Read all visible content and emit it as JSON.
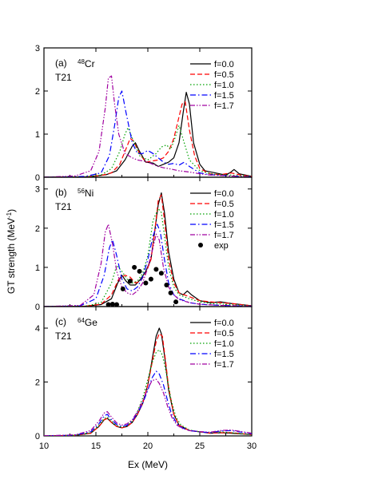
{
  "figure": {
    "xlabel": "Ex (MeV)",
    "ylabel": "GT strength (MeV",
    "ylabel_sup": "-1",
    "ylabel_close": ")",
    "xticks": [
      10,
      15,
      20,
      25,
      30
    ]
  },
  "legend_labels": [
    "f=0.0",
    "f=0.5",
    "f=1.0",
    "f=1.5",
    "f=1.7"
  ],
  "exp_label": "exp",
  "series_styles": [
    {
      "color": "#000000",
      "dash": ""
    },
    {
      "color": "#ff0000",
      "dash": "6,3"
    },
    {
      "color": "#00a000",
      "dash": "1.5,2.5"
    },
    {
      "color": "#0000ff",
      "dash": "7,3,1.5,3"
    },
    {
      "color": "#a000a0",
      "dash": "6,2,1.5,2,1.5,2"
    }
  ],
  "chart_data": [
    {
      "type": "line",
      "panel": "(a)",
      "nucleus_mass": "48",
      "nucleus_symbol": "Cr",
      "interaction": "T21",
      "xlim": [
        10,
        30
      ],
      "ylim": [
        0,
        3
      ],
      "yticks": [
        0,
        1,
        2,
        3
      ],
      "series": [
        {
          "name": "f=0.0",
          "x": [
            10,
            14,
            15,
            16,
            17,
            17.8,
            18.5,
            18.8,
            19.2,
            19.8,
            20.5,
            21,
            21.5,
            22,
            22.5,
            23,
            23.4,
            23.7,
            24,
            24.4,
            25,
            25.5,
            26.5,
            27.5,
            28,
            28.3,
            28.8,
            30
          ],
          "y": [
            0,
            0.01,
            0.03,
            0.06,
            0.15,
            0.4,
            0.72,
            0.8,
            0.6,
            0.35,
            0.33,
            0.25,
            0.3,
            0.35,
            0.45,
            0.8,
            1.5,
            1.97,
            1.7,
            0.8,
            0.3,
            0.15,
            0.1,
            0.05,
            0.12,
            0.18,
            0.08,
            0.02
          ]
        },
        {
          "name": "f=0.5",
          "x": [
            10,
            14,
            15.5,
            16.5,
            17.3,
            17.8,
            18.3,
            18.6,
            19.2,
            19.8,
            20.5,
            21,
            21.5,
            22,
            22.5,
            23,
            23.3,
            23.6,
            24,
            24.5,
            25,
            26,
            27,
            28,
            29,
            30
          ],
          "y": [
            0,
            0.01,
            0.04,
            0.1,
            0.3,
            0.6,
            0.9,
            0.85,
            0.55,
            0.35,
            0.38,
            0.4,
            0.45,
            0.6,
            0.9,
            1.4,
            1.7,
            1.75,
            1.1,
            0.5,
            0.2,
            0.08,
            0.06,
            0.1,
            0.05,
            0.02
          ]
        },
        {
          "name": "f=1.0",
          "x": [
            10,
            14,
            15.5,
            16.5,
            17.3,
            17.8,
            18.1,
            18.6,
            19.2,
            20,
            20.8,
            21.3,
            21.8,
            22.2,
            22.6,
            23,
            23.5,
            24,
            25,
            26,
            27,
            28,
            30
          ],
          "y": [
            0,
            0.01,
            0.05,
            0.2,
            0.6,
            1.0,
            1.15,
            0.85,
            0.5,
            0.4,
            0.55,
            0.7,
            0.75,
            0.65,
            0.9,
            1.2,
            0.8,
            0.4,
            0.15,
            0.08,
            0.06,
            0.05,
            0.02
          ]
        },
        {
          "name": "f=1.5",
          "x": [
            10,
            14,
            15.5,
            16.3,
            16.8,
            17.2,
            17.5,
            17.9,
            18.5,
            19,
            19.5,
            20,
            20.5,
            21,
            21.5,
            22,
            22.5,
            23,
            23.5,
            24,
            25,
            26,
            28,
            30
          ],
          "y": [
            0,
            0.02,
            0.1,
            0.5,
            1.2,
            1.85,
            2.0,
            1.5,
            0.8,
            0.55,
            0.55,
            0.62,
            0.55,
            0.45,
            0.35,
            0.3,
            0.32,
            0.28,
            0.35,
            0.25,
            0.1,
            0.06,
            0.03,
            0.01
          ]
        },
        {
          "name": "f=1.7",
          "x": [
            10,
            13,
            14.5,
            15.3,
            15.9,
            16.2,
            16.5,
            16.8,
            17.2,
            17.8,
            18.5,
            19,
            19.5,
            20,
            20.5,
            21,
            21.5,
            22,
            23,
            24,
            25,
            26,
            28,
            30
          ],
          "y": [
            0,
            0.03,
            0.15,
            0.6,
            1.6,
            2.3,
            2.35,
            1.7,
            1.0,
            0.55,
            0.45,
            0.4,
            0.38,
            0.35,
            0.3,
            0.25,
            0.22,
            0.2,
            0.15,
            0.12,
            0.08,
            0.05,
            0.03,
            0.01
          ]
        }
      ]
    },
    {
      "type": "line",
      "panel": "(b)",
      "nucleus_mass": "56",
      "nucleus_symbol": "Ni",
      "interaction": "T21",
      "xlim": [
        10,
        30
      ],
      "ylim": [
        0,
        3.3
      ],
      "yticks": [
        0,
        1,
        2,
        3
      ],
      "series": [
        {
          "name": "f=0.0",
          "x": [
            10,
            14,
            15.5,
            16.5,
            17.1,
            17.5,
            17.9,
            18.3,
            18.8,
            19.3,
            19.8,
            20.3,
            20.7,
            21,
            21.3,
            21.6,
            22,
            22.5,
            23,
            23.4,
            23.8,
            24.2,
            25,
            26,
            27,
            28,
            30
          ],
          "y": [
            0,
            0.01,
            0.05,
            0.2,
            0.6,
            0.8,
            0.65,
            0.55,
            0.55,
            0.7,
            0.9,
            1.2,
            2.0,
            2.6,
            2.9,
            2.4,
            1.4,
            0.7,
            0.35,
            0.3,
            0.4,
            0.3,
            0.15,
            0.1,
            0.12,
            0.08,
            0.02
          ]
        },
        {
          "name": "f=0.5",
          "x": [
            10,
            14,
            15.5,
            16.5,
            17.2,
            17.8,
            18.3,
            18.8,
            19.3,
            19.8,
            20.3,
            20.7,
            21,
            21.3,
            21.6,
            22,
            22.5,
            23,
            23.5,
            24,
            25,
            26,
            27,
            28,
            30
          ],
          "y": [
            0,
            0.01,
            0.06,
            0.3,
            0.7,
            0.8,
            0.75,
            0.6,
            0.65,
            0.85,
            1.2,
            2.0,
            2.7,
            2.85,
            2.2,
            1.2,
            0.6,
            0.35,
            0.3,
            0.25,
            0.15,
            0.12,
            0.1,
            0.08,
            0.02
          ]
        },
        {
          "name": "f=1.0",
          "x": [
            10,
            14,
            15.5,
            16.5,
            17,
            17.5,
            18,
            18.5,
            19,
            19.5,
            20,
            20.5,
            21,
            21.3,
            21.6,
            22,
            22.5,
            23,
            24,
            25,
            26,
            28,
            30
          ],
          "y": [
            0,
            0.01,
            0.1,
            0.6,
            1.05,
            0.9,
            0.7,
            0.6,
            0.65,
            0.85,
            1.3,
            2.2,
            2.5,
            2.4,
            1.8,
            1.0,
            0.5,
            0.3,
            0.2,
            0.12,
            0.08,
            0.05,
            0.02
          ]
        },
        {
          "name": "f=1.5",
          "x": [
            10,
            13.5,
            15,
            15.8,
            16.3,
            16.6,
            17,
            17.5,
            18,
            18.5,
            19,
            19.5,
            20,
            20.5,
            20.9,
            21.2,
            21.6,
            22,
            22.5,
            23,
            24,
            25,
            27,
            30
          ],
          "y": [
            0,
            0.02,
            0.2,
            0.8,
            1.5,
            1.7,
            1.3,
            0.7,
            0.45,
            0.4,
            0.5,
            0.75,
            1.2,
            1.8,
            2.1,
            1.9,
            1.2,
            0.6,
            0.3,
            0.2,
            0.1,
            0.06,
            0.03,
            0.01
          ]
        },
        {
          "name": "f=1.7",
          "x": [
            10,
            13.5,
            14.8,
            15.5,
            15.9,
            16.2,
            16.6,
            17,
            17.5,
            18,
            18.5,
            19,
            19.5,
            20,
            20.5,
            20.8,
            21.1,
            21.5,
            22,
            22.5,
            23,
            24,
            25,
            27,
            30
          ],
          "y": [
            0,
            0.03,
            0.3,
            1.1,
            1.9,
            2.1,
            1.6,
            0.9,
            0.5,
            0.35,
            0.3,
            0.4,
            0.6,
            1.0,
            1.5,
            1.85,
            1.7,
            1.0,
            0.5,
            0.3,
            0.18,
            0.1,
            0.06,
            0.03,
            0.01
          ]
        },
        {
          "name": "exp",
          "points": [
            [
              16.2,
              0.05
            ],
            [
              16.6,
              0.06
            ],
            [
              17.0,
              0.05
            ],
            [
              17.6,
              0.45
            ],
            [
              18.3,
              0.65
            ],
            [
              18.7,
              1.0
            ],
            [
              19.2,
              0.9
            ],
            [
              19.8,
              0.6
            ],
            [
              20.3,
              0.7
            ],
            [
              20.8,
              0.95
            ],
            [
              21.3,
              0.85
            ],
            [
              21.8,
              0.55
            ],
            [
              22.2,
              0.35
            ],
            [
              22.7,
              0.12
            ]
          ]
        }
      ]
    },
    {
      "type": "line",
      "panel": "(c)",
      "nucleus_mass": "64",
      "nucleus_symbol": "Ge",
      "interaction": "T21",
      "xlim": [
        10,
        30
      ],
      "ylim": [
        0,
        4.8
      ],
      "yticks": [
        0,
        2,
        4
      ],
      "series": [
        {
          "name": "f=0.0",
          "x": [
            10,
            13,
            14.5,
            15.3,
            15.8,
            16.1,
            16.5,
            17,
            17.5,
            18,
            18.5,
            19,
            19.5,
            20,
            20.4,
            20.8,
            21.1,
            21.3,
            21.6,
            22,
            22.5,
            23,
            24,
            25,
            26,
            27,
            28,
            30
          ],
          "y": [
            0,
            0.02,
            0.1,
            0.35,
            0.6,
            0.65,
            0.5,
            0.35,
            0.3,
            0.35,
            0.5,
            0.8,
            1.2,
            1.9,
            2.8,
            3.7,
            4.0,
            3.8,
            3.0,
            1.7,
            0.8,
            0.4,
            0.2,
            0.15,
            0.1,
            0.12,
            0.1,
            0.05
          ]
        },
        {
          "name": "f=0.5",
          "x": [
            10,
            13,
            14.5,
            15.3,
            15.8,
            16.1,
            16.5,
            17,
            17.5,
            18,
            18.5,
            19,
            19.5,
            20,
            20.4,
            20.8,
            21.1,
            21.4,
            21.7,
            22,
            22.5,
            23,
            24,
            25,
            26,
            27,
            28,
            30
          ],
          "y": [
            0,
            0.02,
            0.1,
            0.35,
            0.6,
            0.65,
            0.5,
            0.35,
            0.3,
            0.35,
            0.5,
            0.8,
            1.2,
            1.9,
            2.7,
            3.5,
            3.8,
            3.7,
            2.8,
            1.8,
            0.8,
            0.4,
            0.2,
            0.15,
            0.1,
            0.12,
            0.12,
            0.05
          ]
        },
        {
          "name": "f=1.0",
          "x": [
            10,
            13,
            14.5,
            15.3,
            15.8,
            16.1,
            16.5,
            17,
            17.5,
            18,
            18.5,
            19,
            19.5,
            20,
            20.4,
            20.8,
            21.1,
            21.4,
            21.8,
            22.2,
            22.7,
            23.2,
            24,
            25,
            26,
            27,
            28,
            30
          ],
          "y": [
            0,
            0.02,
            0.12,
            0.4,
            0.65,
            0.7,
            0.55,
            0.38,
            0.32,
            0.38,
            0.55,
            0.9,
            1.4,
            2.1,
            2.7,
            3.1,
            3.2,
            3.0,
            2.3,
            1.4,
            0.7,
            0.4,
            0.22,
            0.15,
            0.12,
            0.15,
            0.12,
            0.05
          ]
        },
        {
          "name": "f=1.5",
          "x": [
            10,
            13,
            14.5,
            15.3,
            15.8,
            16.1,
            16.5,
            17,
            17.5,
            18,
            18.5,
            19,
            19.5,
            20,
            20.4,
            20.8,
            21.1,
            21.5,
            21.9,
            22.3,
            22.8,
            23.3,
            24,
            25,
            26,
            27,
            28,
            30
          ],
          "y": [
            0,
            0.03,
            0.15,
            0.45,
            0.75,
            0.8,
            0.6,
            0.42,
            0.35,
            0.4,
            0.55,
            0.85,
            1.2,
            1.7,
            2.15,
            2.4,
            2.3,
            1.9,
            1.3,
            0.8,
            0.45,
            0.3,
            0.2,
            0.15,
            0.12,
            0.18,
            0.2,
            0.08
          ]
        },
        {
          "name": "f=1.7",
          "x": [
            10,
            13,
            14.5,
            15.3,
            15.8,
            16.1,
            16.5,
            17,
            17.5,
            18,
            18.5,
            19,
            19.5,
            20,
            20.4,
            20.8,
            21.1,
            21.5,
            21.9,
            22.3,
            22.8,
            23.3,
            24,
            25,
            26,
            27,
            28,
            30
          ],
          "y": [
            0,
            0.04,
            0.2,
            0.55,
            0.85,
            0.9,
            0.7,
            0.48,
            0.4,
            0.45,
            0.6,
            0.9,
            1.3,
            1.75,
            2.05,
            2.1,
            1.95,
            1.6,
            1.1,
            0.7,
            0.4,
            0.28,
            0.2,
            0.16,
            0.14,
            0.2,
            0.22,
            0.1
          ]
        }
      ]
    }
  ]
}
